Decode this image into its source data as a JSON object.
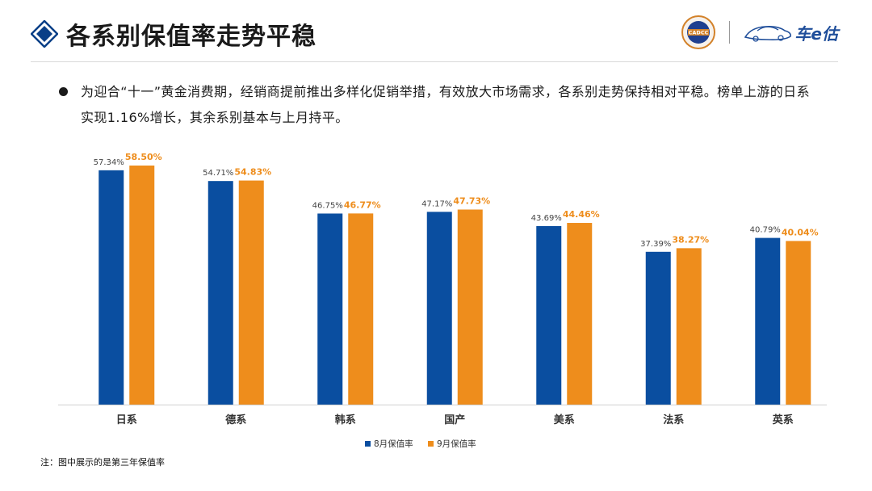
{
  "header": {
    "title": "各系别保值率走势平稳",
    "seal_text": "CADCC",
    "brand_text": "车e估",
    "brand_color": "#1f4e9a",
    "title_icon": "diamond-icon"
  },
  "bullet": {
    "text": "为迎合“十一”黄金消费期，经销商提前推出多样化促销举措，有效放大市场需求，各系别走势保持相对平稳。榜单上游的日系实现1.16%增长，其余系别基本与上月持平。"
  },
  "footnote": "注：图中展示的是第三年保值率",
  "chart_data": {
    "type": "bar",
    "title": "",
    "xlabel": "",
    "ylabel": "",
    "categories": [
      "日系",
      "德系",
      "韩系",
      "国产",
      "美系",
      "法系",
      "英系"
    ],
    "series": [
      {
        "name": "8月保值率",
        "color": "#0a4ea0",
        "values": [
          57.34,
          54.71,
          46.75,
          47.17,
          43.69,
          37.39,
          40.79
        ],
        "labels": [
          "57.34%",
          "54.71%",
          "46.75%",
          "47.17%",
          "43.69%",
          "37.39%",
          "40.79%"
        ]
      },
      {
        "name": "9月保值率",
        "color": "#ee8d1c",
        "values": [
          58.5,
          54.83,
          46.77,
          47.73,
          44.46,
          38.27,
          40.04
        ],
        "labels": [
          "58.50%",
          "54.83%",
          "46.77%",
          "47.73%",
          "44.46%",
          "38.27%",
          "40.04%"
        ]
      }
    ],
    "ylim": [
      0,
      60
    ],
    "grid": false,
    "legend_position": "bottom-center"
  }
}
